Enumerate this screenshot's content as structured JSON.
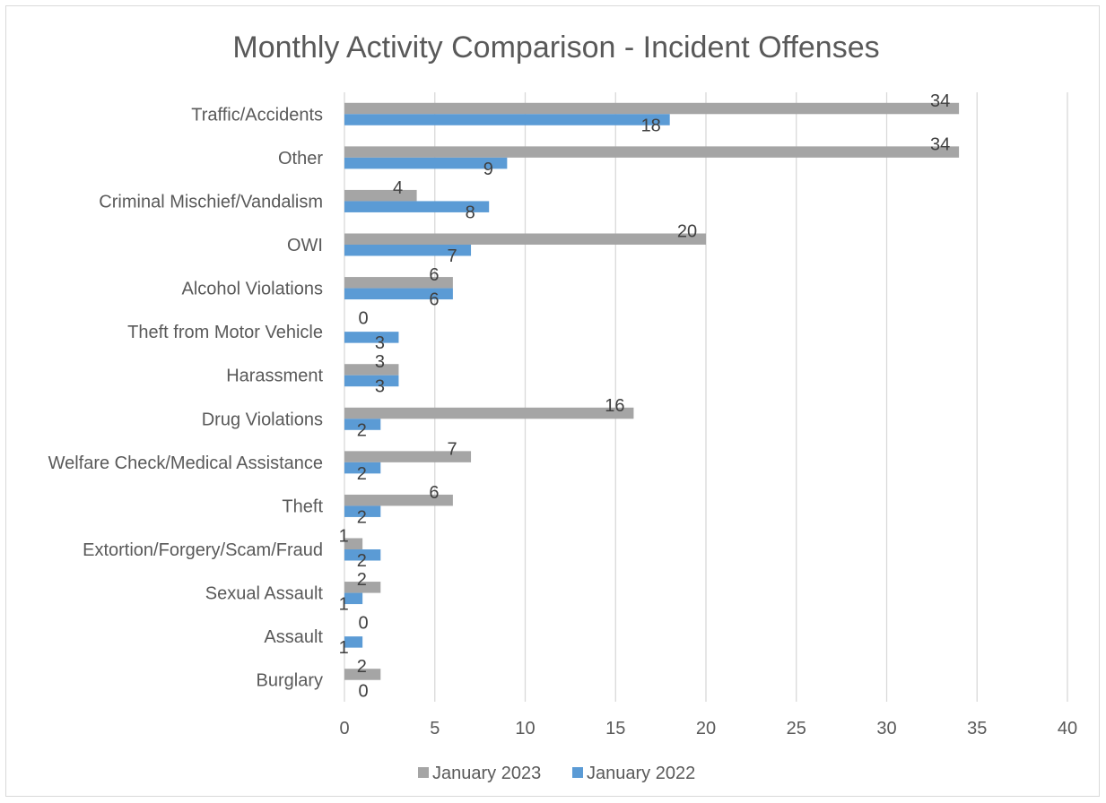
{
  "chart_data": {
    "type": "bar",
    "orientation": "horizontal",
    "title": "Monthly Activity Comparison - Incident Offenses",
    "xlabel": "",
    "ylabel": "",
    "xlim": [
      0,
      40
    ],
    "x_ticks": [
      0,
      5,
      10,
      15,
      20,
      25,
      30,
      35,
      40
    ],
    "grid": true,
    "legend_position": "bottom",
    "categories": [
      "Traffic/Accidents",
      "Other",
      "Criminal Mischief/Vandalism",
      "OWI",
      "Alcohol Violations",
      "Theft from Motor Vehicle",
      "Harassment",
      "Drug Violations",
      "Welfare Check/Medical Assistance",
      "Theft",
      "Extortion/Forgery/Scam/Fraud",
      "Sexual Assault",
      "Assault",
      "Burglary"
    ],
    "series": [
      {
        "name": "January 2023",
        "color": "#a5a5a5",
        "values": [
          34,
          34,
          4,
          20,
          6,
          0,
          3,
          16,
          7,
          6,
          1,
          2,
          0,
          2
        ]
      },
      {
        "name": "January 2022",
        "color": "#5b9bd5",
        "values": [
          18,
          9,
          8,
          7,
          6,
          3,
          3,
          2,
          2,
          2,
          2,
          1,
          1,
          0
        ]
      }
    ]
  }
}
